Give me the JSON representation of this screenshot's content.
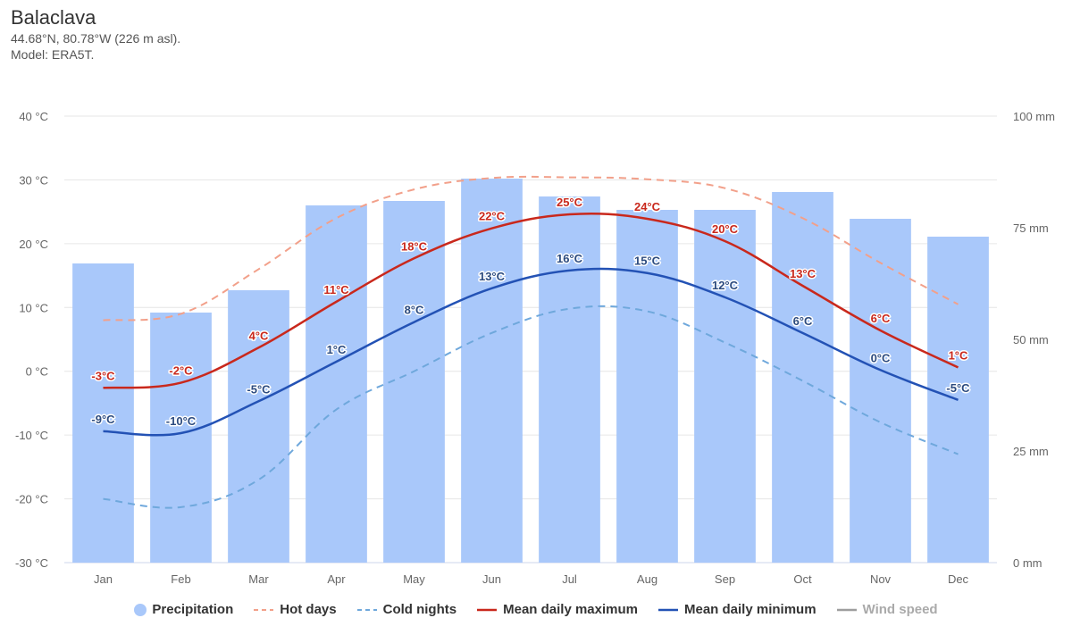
{
  "header": {
    "title": "Balaclava",
    "coords": "44.68°N, 80.78°W (226 m asl).",
    "model": "Model: ERA5T."
  },
  "colors": {
    "precipitation": "#a9c8fa",
    "hot_days": "#f2a08a",
    "cold_nights": "#6fa8dc",
    "mean_max": "#c9281c",
    "mean_min": "#2352b5",
    "wind_speed": "#9e9e9e",
    "grid": "#e6e6e6"
  },
  "legend": [
    {
      "label": "Precipitation",
      "icon": "circle",
      "color": "#a9c8fa",
      "enabled": true
    },
    {
      "label": "Hot days",
      "icon": "dashed-line",
      "color": "#f2a08a",
      "enabled": true
    },
    {
      "label": "Cold nights",
      "icon": "dashed-line",
      "color": "#6fa8dc",
      "enabled": true
    },
    {
      "label": "Mean daily maximum",
      "icon": "line",
      "color": "#c9281c",
      "enabled": true
    },
    {
      "label": "Mean daily minimum",
      "icon": "line",
      "color": "#2352b5",
      "enabled": true
    },
    {
      "label": "Wind speed",
      "icon": "line",
      "color": "#9e9e9e",
      "enabled": false
    }
  ],
  "chart_data": {
    "type": "bar",
    "categories": [
      "Jan",
      "Feb",
      "Mar",
      "Apr",
      "May",
      "Jun",
      "Jul",
      "Aug",
      "Sep",
      "Oct",
      "Nov",
      "Dec"
    ],
    "y_left": {
      "ticks": [
        40,
        30,
        20,
        10,
        0,
        -10,
        -20,
        -30
      ],
      "labels": [
        "40 °C",
        "30 °C",
        "20 °C",
        "10 °C",
        "0 °C",
        "-10 °C",
        "-20 °C",
        "-30 °C"
      ],
      "range": [
        -30,
        40
      ]
    },
    "y_right": {
      "ticks": [
        100,
        75,
        50,
        25,
        0
      ],
      "labels": [
        "100 mm",
        "75 mm",
        "50 mm",
        "25 mm",
        "0 mm"
      ],
      "range": [
        0,
        100
      ]
    },
    "grid": true,
    "legend_position": "bottom",
    "series": [
      {
        "name": "Precipitation",
        "type": "bar",
        "axis": "right",
        "values": [
          67,
          56,
          61,
          80,
          81,
          86,
          82,
          79,
          79,
          83,
          77,
          73
        ]
      },
      {
        "name": "Hot days",
        "type": "dashed-line",
        "axis": "left",
        "values": [
          8,
          9,
          16,
          24,
          28.5,
          30.3,
          30.4,
          30.1,
          28.7,
          24,
          17,
          10.5
        ]
      },
      {
        "name": "Cold nights",
        "type": "dashed-line",
        "axis": "left",
        "values": [
          -20,
          -21.3,
          -17,
          -6,
          0,
          6,
          9.8,
          9.4,
          4.5,
          -1.5,
          -8,
          -13
        ]
      },
      {
        "name": "Mean daily maximum",
        "type": "line",
        "axis": "left",
        "values": [
          -2.6,
          -1.8,
          3.7,
          10.9,
          17.7,
          22.4,
          24.6,
          23.9,
          20.4,
          13.4,
          6.4,
          0.6
        ],
        "labels": [
          "-3°C",
          "-2°C",
          "4°C",
          "11°C",
          "18°C",
          "22°C",
          "25°C",
          "24°C",
          "20°C",
          "13°C",
          "6°C",
          "1°C"
        ]
      },
      {
        "name": "Mean daily minimum",
        "type": "line",
        "axis": "left",
        "values": [
          -9.4,
          -9.7,
          -4.7,
          1.5,
          7.7,
          13.0,
          15.8,
          15.4,
          11.6,
          6.0,
          0.2,
          -4.5
        ],
        "labels": [
          "-9°C",
          "-10°C",
          "-5°C",
          "1°C",
          "8°C",
          "13°C",
          "16°C",
          "15°C",
          "12°C",
          "6°C",
          "0°C",
          "-5°C"
        ]
      }
    ]
  }
}
